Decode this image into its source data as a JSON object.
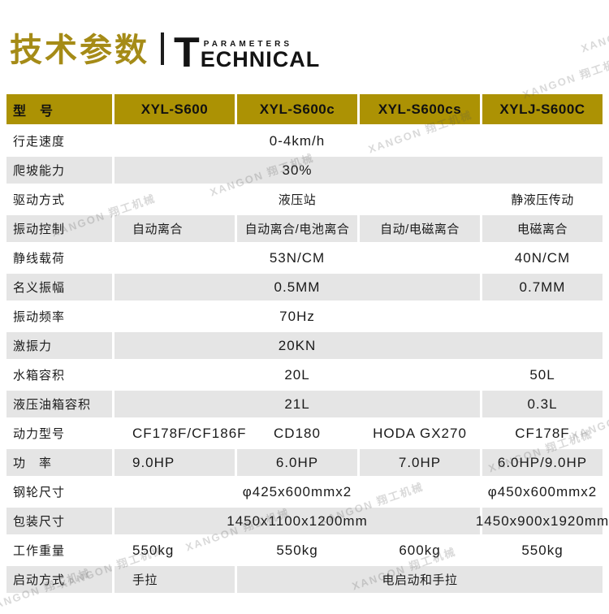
{
  "masthead": {
    "title_cn": "技术参数",
    "title_en_initial": "T",
    "title_en_rest": "ECHNICAL",
    "title_en_small": "PARAMETERS"
  },
  "watermark": {
    "text": "XANGON 翔工机械"
  },
  "colors": {
    "accent_gold": "#ac9204",
    "title_gold": "#a58b17",
    "row_shade": "#e5e5e5"
  },
  "table": {
    "columns": [
      "型　号",
      "XYL-S600",
      "XYL-S600c",
      "XYL-S600cs",
      "XYLJ-S600C"
    ],
    "rows": [
      {
        "label": "行走速度",
        "shaded": false,
        "cells": [
          {
            "text": "0-4km/h",
            "span": 4,
            "center34": true
          }
        ]
      },
      {
        "label": "爬坡能力",
        "shaded": true,
        "cells": [
          {
            "text": "30%",
            "span": 4,
            "center34": true
          }
        ]
      },
      {
        "label": "驱动方式",
        "shaded": false,
        "cells": [
          {
            "text": "液压站",
            "span": 3,
            "cn": true
          },
          {
            "text": "静液压传动",
            "span": 1,
            "cn": true
          }
        ]
      },
      {
        "label": "振动控制",
        "shaded": true,
        "cells": [
          {
            "text": "自动离合",
            "span": 1,
            "cn": true
          },
          {
            "text": "自动离合/电池离合",
            "span": 1,
            "cn": true
          },
          {
            "text": "自动/电磁离合",
            "span": 1,
            "cn": true
          },
          {
            "text": "电磁离合",
            "span": 1,
            "cn": true
          }
        ]
      },
      {
        "label": "静线载荷",
        "shaded": false,
        "cells": [
          {
            "text": "53N/CM",
            "span": 3
          },
          {
            "text": "40N/CM",
            "span": 1
          }
        ]
      },
      {
        "label": "名义振幅",
        "shaded": true,
        "cells": [
          {
            "text": "0.5MM",
            "span": 3
          },
          {
            "text": "0.7MM",
            "span": 1
          }
        ]
      },
      {
        "label": "振动频率",
        "shaded": false,
        "cells": [
          {
            "text": "70Hz",
            "span": 4,
            "center34": true
          }
        ]
      },
      {
        "label": "激振力",
        "shaded": true,
        "cells": [
          {
            "text": "20KN",
            "span": 4,
            "center34": true
          }
        ]
      },
      {
        "label": "水箱容积",
        "shaded": false,
        "cells": [
          {
            "text": "20L",
            "span": 3
          },
          {
            "text": "50L",
            "span": 1
          }
        ]
      },
      {
        "label": "液压油箱容积",
        "shaded": true,
        "cells": [
          {
            "text": "21L",
            "span": 3
          },
          {
            "text": "0.3L",
            "span": 1
          }
        ]
      },
      {
        "label": "动力型号",
        "shaded": false,
        "cells": [
          {
            "text": "CF178F/CF186F",
            "span": 1
          },
          {
            "text": "CD180",
            "span": 1
          },
          {
            "text": "HODA GX270",
            "span": 1
          },
          {
            "text": "CF178F",
            "span": 1
          }
        ]
      },
      {
        "label": "功　率",
        "shaded": true,
        "cells": [
          {
            "text": "9.0HP",
            "span": 1
          },
          {
            "text": "6.0HP",
            "span": 1
          },
          {
            "text": "7.0HP",
            "span": 1
          },
          {
            "text": "6.0HP/9.0HP",
            "span": 1
          }
        ]
      },
      {
        "label": "钢轮尺寸",
        "shaded": false,
        "cells": [
          {
            "text": "φ425x600mmx2",
            "span": 3
          },
          {
            "text": "φ450x600mmx2",
            "span": 1
          }
        ]
      },
      {
        "label": "包装尺寸",
        "shaded": true,
        "cells": [
          {
            "text": "1450x1100x1200mm",
            "span": 3
          },
          {
            "text": "1450x900x1920mm",
            "span": 1
          }
        ]
      },
      {
        "label": "工作重量",
        "shaded": false,
        "cells": [
          {
            "text": "550kg",
            "span": 1
          },
          {
            "text": "550kg",
            "span": 1
          },
          {
            "text": "600kg",
            "span": 1
          },
          {
            "text": "550kg",
            "span": 1
          }
        ]
      },
      {
        "label": "启动方式",
        "shaded": true,
        "cells": [
          {
            "text": "手拉",
            "span": 1,
            "cn": true
          },
          {
            "text": "电启动和手拉",
            "span": 3,
            "cn": true
          }
        ]
      }
    ]
  }
}
